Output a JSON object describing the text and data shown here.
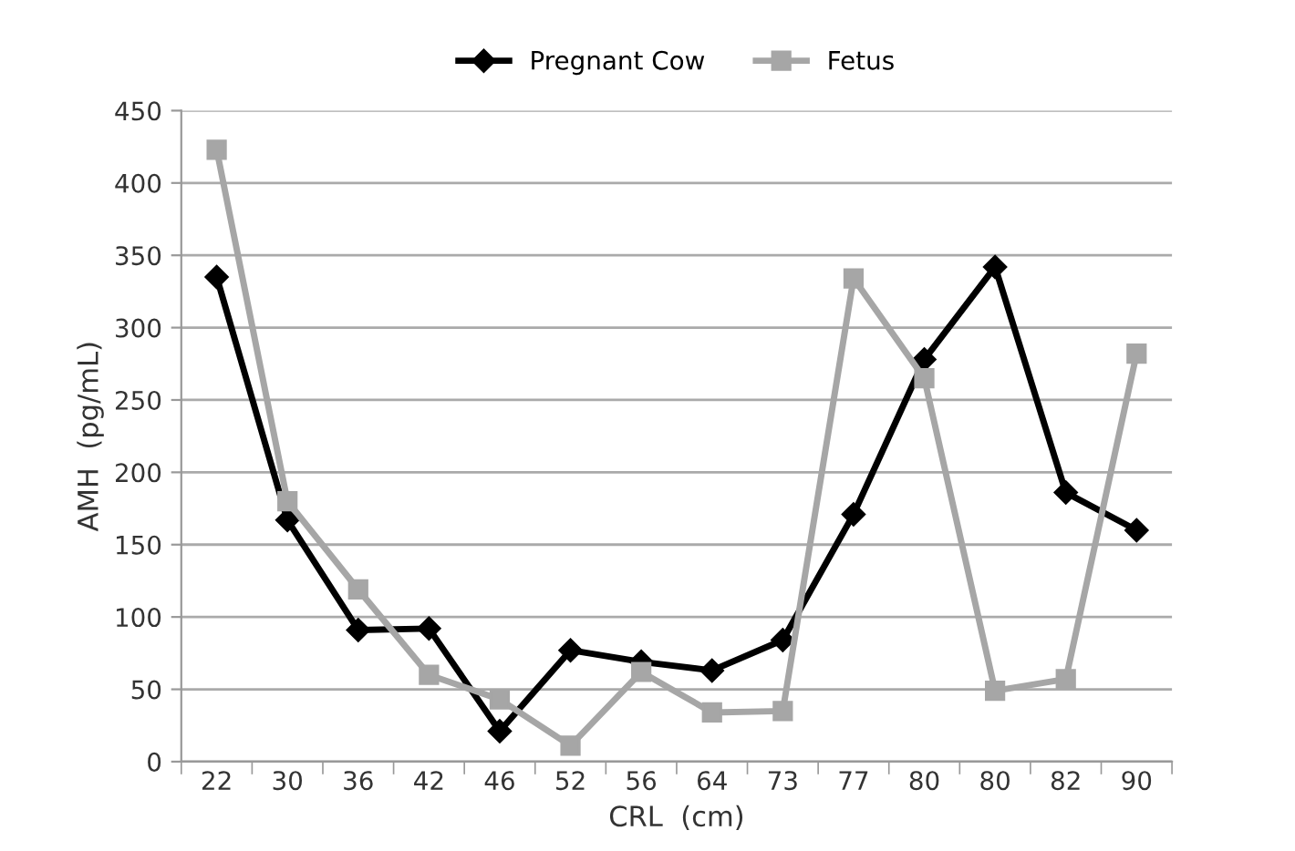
{
  "chart_data": {
    "type": "line",
    "xlabel": "CRL  (cm)",
    "ylabel": "AMH  (pg/mL)",
    "categories": [
      "22",
      "30",
      "36",
      "42",
      "46",
      "52",
      "56",
      "64",
      "73",
      "77",
      "80",
      "80",
      "82",
      "90"
    ],
    "series": [
      {
        "name": "Pregnant Cow",
        "color": "#000000",
        "marker": "diamond",
        "values": [
          335,
          167,
          91,
          92,
          21,
          77,
          69,
          63,
          84,
          171,
          278,
          342,
          186,
          160
        ]
      },
      {
        "name": "Fetus",
        "color": "#a6a6a6",
        "marker": "square",
        "values": [
          423,
          180,
          119,
          60,
          43,
          11,
          62,
          34,
          35,
          334,
          265,
          49,
          57,
          282
        ]
      }
    ],
    "ylim": [
      0,
      450
    ],
    "yticks": [
      0,
      50,
      100,
      150,
      200,
      250,
      300,
      350,
      400,
      450
    ],
    "grid": "y",
    "legend": "top",
    "line_style": "solid"
  }
}
